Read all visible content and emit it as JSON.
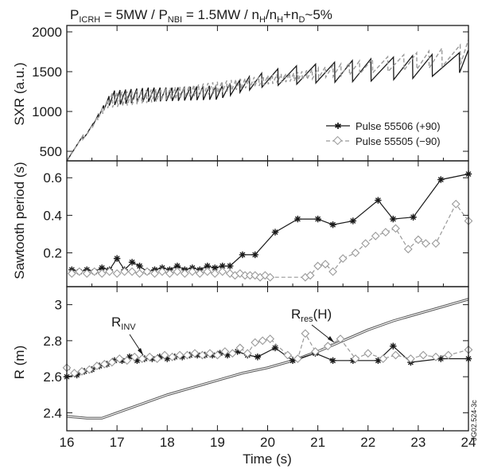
{
  "chart_data": {
    "type": "line",
    "title_parts": {
      "p1": "P",
      "p1_sub": "ICRH",
      "p1_val": " = 5MW / P",
      "p2_sub": "NBI",
      "p2_val": " = 1.5MW / n",
      "n1_sub": "H",
      "slash": "/n",
      "n2_sub": "H",
      "plus": "+n",
      "n3_sub": "D",
      "tail": "~5%"
    },
    "xlabel": "Time (s)",
    "xlim": [
      16,
      24
    ],
    "xticks": [
      "16",
      "17",
      "18",
      "19",
      "20",
      "21",
      "22",
      "23",
      "24"
    ],
    "side_label": "JG02.524-3c",
    "colors": {
      "pulse_55506": "#1a1a1a",
      "pulse_55505": "#999999",
      "r_res": "#555555"
    },
    "panels": [
      {
        "id": "sxr",
        "ylabel": "SXR (a.u.)",
        "ylim": [
          380,
          2080
        ],
        "yticks": [
          500,
          1000,
          1500,
          2000
        ],
        "legend": {
          "position": "right",
          "entries": [
            {
              "label": "Pulse 55506 (+90)",
              "marker": "star",
              "style": "solid"
            },
            {
              "label": "Pulse 55505 (−90)",
              "marker": "diamond",
              "style": "dashed"
            }
          ]
        },
        "series": [
          {
            "name": "Pulse 55506 (+90)",
            "style": "solid",
            "crashes_start": 16.3,
            "crashes_end": 24.0,
            "period_points": [
              [
                16.0,
                0.1
              ],
              [
                19.0,
                0.13
              ],
              [
                19.3,
                0.2
              ],
              [
                19.5,
                0.19
              ],
              [
                19.8,
                0.31
              ],
              [
                20.2,
                0.37
              ],
              [
                20.6,
                0.38
              ],
              [
                21.0,
                0.38
              ],
              [
                21.3,
                0.35
              ],
              [
                21.7,
                0.37
              ],
              [
                22.2,
                0.48
              ],
              [
                22.5,
                0.38
              ],
              [
                22.9,
                0.39
              ],
              [
                23.4,
                0.59
              ],
              [
                24.0,
                0.62
              ]
            ],
            "envelope_low": [
              [
                16.0,
                380
              ],
              [
                16.8,
                1070
              ],
              [
                17.5,
                1120
              ],
              [
                18.0,
                1130
              ],
              [
                19.0,
                1150
              ],
              [
                19.5,
                1250
              ],
              [
                20.0,
                1320
              ],
              [
                21.0,
                1360
              ],
              [
                22.0,
                1380
              ],
              [
                23.0,
                1420
              ],
              [
                24.0,
                1500
              ]
            ],
            "envelope_high": [
              [
                16.0,
                380
              ],
              [
                16.8,
                1260
              ],
              [
                17.5,
                1300
              ],
              [
                18.0,
                1300
              ],
              [
                19.0,
                1330
              ],
              [
                19.5,
                1450
              ],
              [
                20.0,
                1560
              ],
              [
                21.0,
                1620
              ],
              [
                22.0,
                1680
              ],
              [
                23.0,
                1720
              ],
              [
                24.0,
                1780
              ]
            ]
          },
          {
            "name": "Pulse 55505 (−90)",
            "style": "dashed",
            "crashes_start": 16.3,
            "crashes_end": 24.0,
            "period_points": [
              [
                16.0,
                0.1
              ],
              [
                20.0,
                0.09
              ],
              [
                20.6,
                0.08
              ],
              [
                21.0,
                0.14
              ],
              [
                21.5,
                0.17
              ],
              [
                22.0,
                0.3
              ],
              [
                22.4,
                0.32
              ],
              [
                22.8,
                0.24
              ],
              [
                23.2,
                0.25
              ],
              [
                23.7,
                0.46
              ],
              [
                24.0,
                0.37
              ]
            ],
            "envelope_low": [
              [
                16.0,
                390
              ],
              [
                16.8,
                1040
              ],
              [
                17.5,
                1100
              ],
              [
                18.0,
                1140
              ],
              [
                19.0,
                1230
              ],
              [
                20.0,
                1340
              ],
              [
                20.5,
                1380
              ],
              [
                21.0,
                1420
              ],
              [
                22.0,
                1480
              ],
              [
                23.0,
                1530
              ],
              [
                24.0,
                1600
              ]
            ],
            "envelope_high": [
              [
                16.0,
                390
              ],
              [
                16.8,
                1240
              ],
              [
                17.5,
                1270
              ],
              [
                18.0,
                1300
              ],
              [
                19.0,
                1380
              ],
              [
                20.0,
                1460
              ],
              [
                20.5,
                1490
              ],
              [
                21.0,
                1560
              ],
              [
                22.0,
                1680
              ],
              [
                23.0,
                1760
              ],
              [
                24.0,
                1920
              ]
            ]
          }
        ]
      },
      {
        "id": "period",
        "ylabel": "Sawtooth period (s)",
        "ylim": [
          0.02,
          0.69
        ],
        "yticks": [
          0.2,
          0.4,
          0.6
        ],
        "series": [
          {
            "name": "Pulse 55506 (+90)",
            "style": "solid",
            "marker": "star",
            "x": [
              16.1,
              16.25,
              16.4,
              16.55,
              16.7,
              16.85,
              17.0,
              17.15,
              17.3,
              17.45,
              17.6,
              17.75,
              17.9,
              18.05,
              18.2,
              18.35,
              18.5,
              18.65,
              18.8,
              18.95,
              19.1,
              19.25,
              19.5,
              19.75,
              20.15,
              20.6,
              21.0,
              21.3,
              21.7,
              22.2,
              22.5,
              22.9,
              23.45,
              24.0
            ],
            "y": [
              0.11,
              0.1,
              0.11,
              0.1,
              0.12,
              0.11,
              0.17,
              0.11,
              0.15,
              0.13,
              0.1,
              0.11,
              0.12,
              0.11,
              0.13,
              0.11,
              0.12,
              0.11,
              0.13,
              0.12,
              0.13,
              0.13,
              0.19,
              0.19,
              0.31,
              0.38,
              0.38,
              0.35,
              0.37,
              0.48,
              0.38,
              0.39,
              0.59,
              0.62
            ]
          },
          {
            "name": "Pulse 55505 (−90)",
            "style": "dashed",
            "marker": "diamond",
            "x": [
              16.1,
              16.25,
              16.4,
              16.55,
              16.7,
              16.85,
              17.0,
              17.15,
              17.3,
              17.45,
              17.6,
              17.75,
              17.9,
              18.05,
              18.2,
              18.35,
              18.5,
              18.65,
              18.8,
              18.95,
              19.1,
              19.25,
              19.35,
              19.45,
              19.55,
              19.65,
              19.75,
              19.85,
              19.95,
              20.05,
              20.75,
              20.85,
              21.0,
              21.15,
              21.3,
              21.5,
              21.75,
              21.95,
              22.15,
              22.35,
              22.55,
              22.8,
              23.0,
              23.15,
              23.35,
              23.75,
              24.0
            ],
            "y": [
              0.09,
              0.1,
              0.09,
              0.1,
              0.09,
              0.1,
              0.09,
              0.1,
              0.1,
              0.09,
              0.1,
              0.09,
              0.1,
              0.09,
              0.1,
              0.09,
              0.1,
              0.09,
              0.1,
              0.09,
              0.1,
              0.09,
              0.08,
              0.09,
              0.08,
              0.08,
              0.08,
              0.07,
              0.08,
              0.07,
              0.07,
              0.08,
              0.13,
              0.14,
              0.1,
              0.17,
              0.2,
              0.25,
              0.29,
              0.31,
              0.33,
              0.22,
              0.27,
              0.25,
              0.25,
              0.46,
              0.37
            ]
          }
        ]
      },
      {
        "id": "radius",
        "ylabel": "R (m)",
        "ylim": [
          2.3,
          3.1
        ],
        "yticks": [
          2.4,
          2.6,
          2.8,
          3.0
        ],
        "annotations": [
          {
            "text": "R",
            "sub": "INV"
          },
          {
            "text": "R",
            "sub": "res",
            "suffix": "(H)"
          }
        ],
        "series": [
          {
            "name": "R_res(H)",
            "style": "double-line",
            "x": [
              16.0,
              16.4,
              16.7,
              17.0,
              17.5,
              18.0,
              18.5,
              19.0,
              19.5,
              20.0,
              20.5,
              21.0,
              21.5,
              22.0,
              22.5,
              23.0,
              23.5,
              24.0
            ],
            "y": [
              2.38,
              2.37,
              2.37,
              2.4,
              2.45,
              2.5,
              2.54,
              2.58,
              2.62,
              2.65,
              2.69,
              2.74,
              2.8,
              2.86,
              2.91,
              2.95,
              2.99,
              3.03
            ]
          },
          {
            "name": "Pulse 55506 (+90)",
            "style": "solid",
            "marker": "star",
            "x": [
              16.0,
              16.2,
              16.35,
              16.5,
              16.65,
              16.8,
              16.95,
              17.1,
              17.25,
              17.4,
              17.55,
              17.7,
              17.85,
              18.0,
              18.15,
              18.3,
              18.45,
              18.6,
              18.75,
              18.9,
              19.05,
              19.2,
              19.4,
              19.6,
              19.8,
              20.15,
              20.5,
              20.95,
              21.3,
              21.7,
              22.2,
              22.5,
              22.85,
              23.45,
              24.0
            ],
            "y": [
              2.6,
              2.61,
              2.63,
              2.64,
              2.66,
              2.67,
              2.69,
              2.69,
              2.71,
              2.69,
              2.7,
              2.7,
              2.71,
              2.7,
              2.71,
              2.71,
              2.72,
              2.72,
              2.72,
              2.72,
              2.73,
              2.72,
              2.74,
              2.72,
              2.71,
              2.76,
              2.69,
              2.73,
              2.69,
              2.69,
              2.69,
              2.77,
              2.68,
              2.7,
              2.7
            ]
          },
          {
            "name": "Pulse 55505 (−90)",
            "style": "dashed",
            "marker": "diamond",
            "x": [
              16.0,
              16.15,
              16.3,
              16.45,
              16.6,
              16.75,
              16.9,
              17.05,
              17.2,
              17.35,
              17.5,
              17.65,
              17.8,
              17.95,
              18.1,
              18.25,
              18.4,
              18.55,
              18.7,
              18.85,
              19.0,
              19.15,
              19.3,
              19.45,
              19.6,
              19.75,
              19.9,
              20.05,
              20.4,
              20.6,
              20.75,
              20.95,
              21.2,
              21.45,
              21.75,
              22.0,
              22.3,
              22.55,
              22.85,
              23.1,
              23.35,
              23.6,
              24.0
            ],
            "y": [
              2.65,
              2.62,
              2.63,
              2.64,
              2.66,
              2.67,
              2.68,
              2.7,
              2.69,
              2.71,
              2.7,
              2.71,
              2.7,
              2.72,
              2.71,
              2.72,
              2.72,
              2.73,
              2.72,
              2.73,
              2.72,
              2.74,
              2.73,
              2.76,
              2.73,
              2.79,
              2.8,
              2.81,
              2.72,
              2.7,
              2.84,
              2.74,
              2.77,
              2.81,
              2.7,
              2.73,
              2.7,
              2.72,
              2.7,
              2.72,
              2.71,
              2.72,
              2.75
            ]
          }
        ]
      }
    ]
  }
}
